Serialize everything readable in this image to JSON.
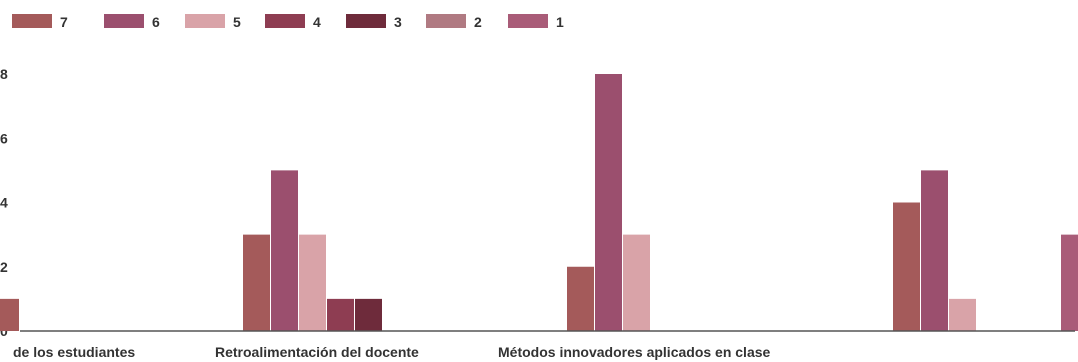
{
  "chart_data": {
    "type": "bar",
    "categories": [
      "de los estudiantes",
      "Retroalimentación del docente",
      "Métodos innovadores aplicados en clase",
      ""
    ],
    "series": [
      {
        "name": "7",
        "values": [
          1,
          3,
          2,
          4
        ],
        "color": "#a45a5a"
      },
      {
        "name": "6",
        "values": [
          0,
          5,
          8,
          5
        ],
        "color": "#9b4f6e"
      },
      {
        "name": "5",
        "values": [
          0,
          3,
          3,
          1
        ],
        "color": "#d9a3a8"
      },
      {
        "name": "4",
        "values": [
          0,
          1,
          0,
          0
        ],
        "color": "#8e3d52"
      },
      {
        "name": "3",
        "values": [
          0,
          1,
          0,
          0
        ],
        "color": "#6e2b3b"
      },
      {
        "name": "2",
        "values": [
          0,
          0,
          0,
          0
        ],
        "color": "#b07a82"
      },
      {
        "name": "1",
        "values": [
          0,
          0,
          0,
          3
        ],
        "color": "#a95c78"
      }
    ],
    "y_ticks": [
      "0",
      "2",
      "4",
      "6",
      "8"
    ],
    "ylim": [
      0,
      8
    ],
    "grid": false,
    "legend_position": "top-left"
  }
}
